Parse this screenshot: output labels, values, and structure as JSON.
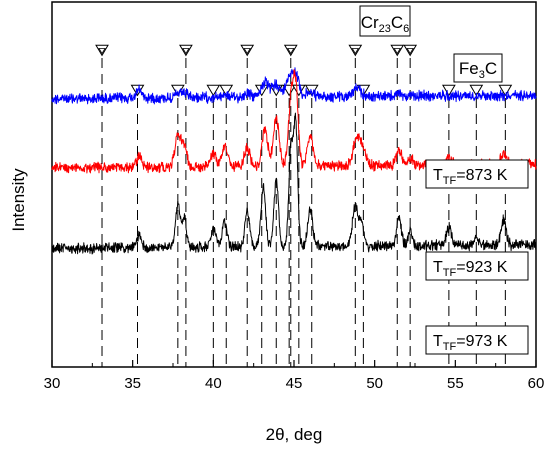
{
  "chart_data": {
    "type": "line",
    "title": "",
    "xlabel": "2θ, deg",
    "ylabel": "Intensity",
    "xlim": [
      30,
      60
    ],
    "x_ticks": [
      30,
      35,
      40,
      45,
      50,
      55,
      60
    ],
    "y_ticks": [],
    "grid": false,
    "series": [
      {
        "name": "T_TF=873 K",
        "label_main": "T",
        "label_sub": "TF",
        "label_rest": "=873 K",
        "color": "#0000ff",
        "baseline": 0.255,
        "peaks": [
          {
            "x": 35.4,
            "h": 0.022,
            "w": 0.25
          },
          {
            "x": 37.8,
            "h": 0.01,
            "w": 0.25
          },
          {
            "x": 38.2,
            "h": 0.012,
            "w": 0.25
          },
          {
            "x": 40.7,
            "h": 0.008,
            "w": 0.25
          },
          {
            "x": 42.1,
            "h": 0.012,
            "w": 0.25
          },
          {
            "x": 43.2,
            "h": 0.04,
            "w": 0.35
          },
          {
            "x": 43.9,
            "h": 0.035,
            "w": 0.3
          },
          {
            "x": 44.7,
            "h": 0.05,
            "w": 0.3
          },
          {
            "x": 45.1,
            "h": 0.06,
            "w": 0.3
          },
          {
            "x": 46.0,
            "h": 0.012,
            "w": 0.3
          },
          {
            "x": 48.9,
            "h": 0.022,
            "w": 0.35
          },
          {
            "x": 51.5,
            "h": 0.005,
            "w": 0.3
          }
        ]
      },
      {
        "name": "T_TF=923 K",
        "label_main": "T",
        "label_sub": "TF",
        "label_rest": "=923 K",
        "color": "#ff0000",
        "baseline": 0.445,
        "peaks": [
          {
            "x": 35.4,
            "h": 0.03,
            "w": 0.25
          },
          {
            "x": 37.8,
            "h": 0.09,
            "w": 0.25
          },
          {
            "x": 38.2,
            "h": 0.06,
            "w": 0.22
          },
          {
            "x": 40.0,
            "h": 0.04,
            "w": 0.22
          },
          {
            "x": 40.7,
            "h": 0.055,
            "w": 0.25
          },
          {
            "x": 42.1,
            "h": 0.05,
            "w": 0.25
          },
          {
            "x": 43.2,
            "h": 0.1,
            "w": 0.25
          },
          {
            "x": 43.9,
            "h": 0.13,
            "w": 0.25
          },
          {
            "x": 44.8,
            "h": 0.17,
            "w": 0.22
          },
          {
            "x": 45.1,
            "h": 0.22,
            "w": 0.22
          },
          {
            "x": 46.0,
            "h": 0.08,
            "w": 0.25
          },
          {
            "x": 48.9,
            "h": 0.08,
            "w": 0.3
          },
          {
            "x": 49.3,
            "h": 0.04,
            "w": 0.25
          },
          {
            "x": 51.5,
            "h": 0.04,
            "w": 0.25
          },
          {
            "x": 52.2,
            "h": 0.02,
            "w": 0.25
          },
          {
            "x": 54.6,
            "h": 0.02,
            "w": 0.25
          },
          {
            "x": 58.0,
            "h": 0.03,
            "w": 0.25
          }
        ]
      },
      {
        "name": "T_TF=973 K",
        "label_main": "T",
        "label_sub": "TF",
        "label_rest": "=973 K",
        "color": "#000000",
        "baseline": 0.665,
        "peaks": [
          {
            "x": 35.4,
            "h": 0.03,
            "w": 0.22
          },
          {
            "x": 37.8,
            "h": 0.12,
            "w": 0.2
          },
          {
            "x": 38.2,
            "h": 0.08,
            "w": 0.2
          },
          {
            "x": 40.0,
            "h": 0.05,
            "w": 0.2
          },
          {
            "x": 40.7,
            "h": 0.07,
            "w": 0.2
          },
          {
            "x": 42.1,
            "h": 0.1,
            "w": 0.2
          },
          {
            "x": 43.1,
            "h": 0.16,
            "w": 0.2
          },
          {
            "x": 43.9,
            "h": 0.18,
            "w": 0.2
          },
          {
            "x": 44.8,
            "h": 0.26,
            "w": 0.18
          },
          {
            "x": 45.1,
            "h": 0.34,
            "w": 0.18
          },
          {
            "x": 46.0,
            "h": 0.1,
            "w": 0.22
          },
          {
            "x": 48.8,
            "h": 0.11,
            "w": 0.25
          },
          {
            "x": 49.2,
            "h": 0.06,
            "w": 0.2
          },
          {
            "x": 51.5,
            "h": 0.08,
            "w": 0.2
          },
          {
            "x": 52.2,
            "h": 0.04,
            "w": 0.2
          },
          {
            "x": 54.6,
            "h": 0.05,
            "w": 0.22
          },
          {
            "x": 56.3,
            "h": 0.02,
            "w": 0.22
          },
          {
            "x": 58.0,
            "h": 0.07,
            "w": 0.22
          }
        ]
      }
    ],
    "markers": {
      "cr23c6": {
        "label_main": "Cr",
        "label_sub1": "23",
        "label_mid": "C",
        "label_sub2": "6",
        "positions": [
          33.1,
          38.3,
          42.1,
          44.8,
          48.8,
          51.4,
          52.2
        ]
      },
      "fe3c": {
        "label_main": "Fe",
        "label_sub": "3",
        "label_rest": "C",
        "positions": [
          35.3,
          37.8,
          40.0,
          40.8,
          43.0,
          43.9,
          44.7,
          45.3,
          46.1,
          49.3,
          54.6,
          56.3,
          58.1
        ]
      }
    }
  }
}
